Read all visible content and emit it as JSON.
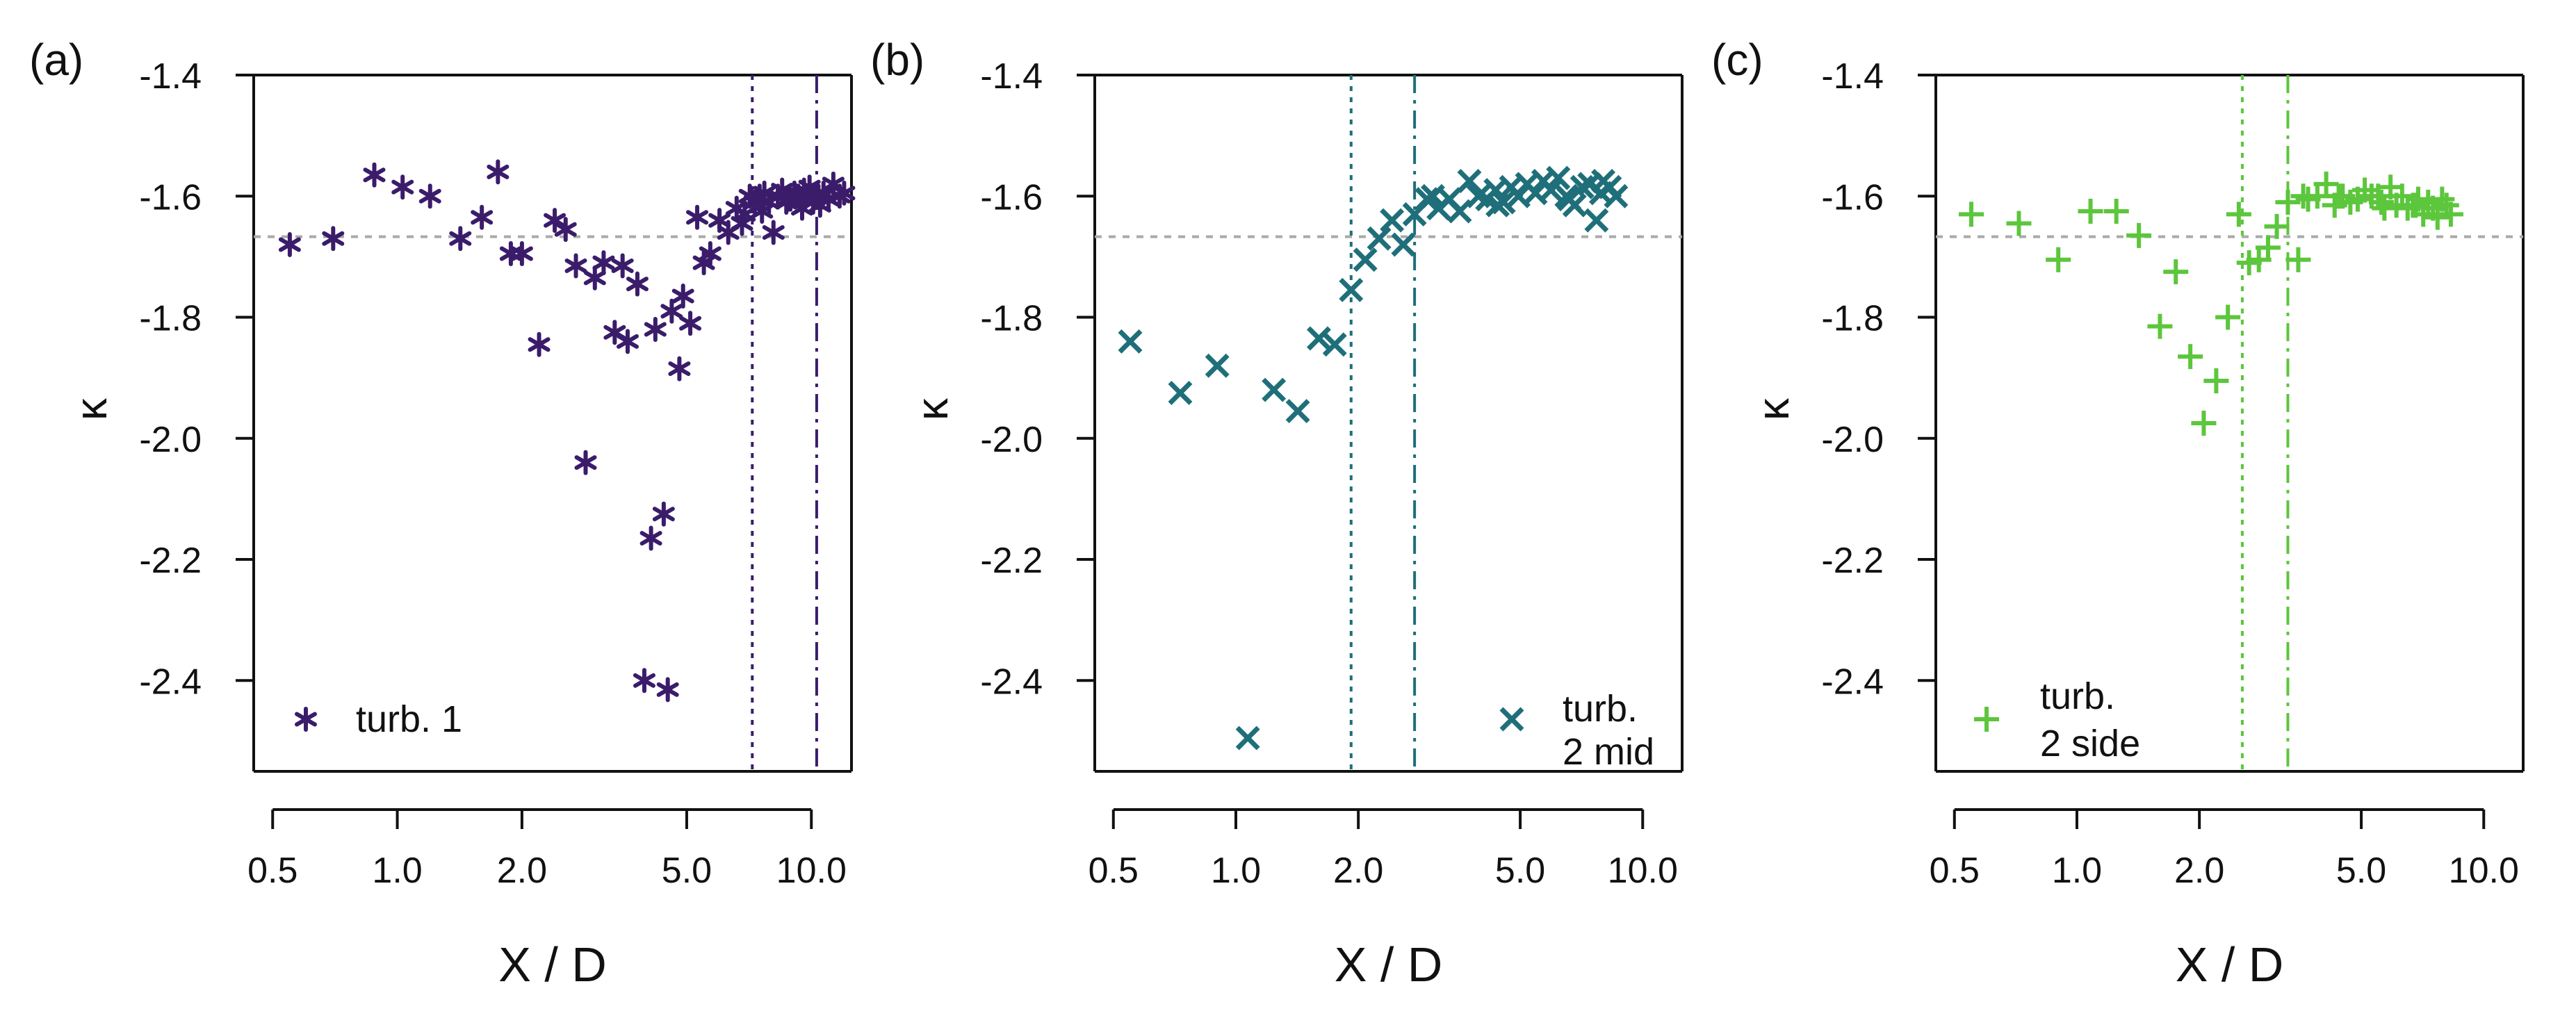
{
  "figure": {
    "panels": [
      "(a)",
      "(b)",
      "(c)"
    ]
  },
  "chart_data": [
    {
      "type": "scatter",
      "panel_label": "(a)",
      "xlabel": "X / D",
      "ylabel": "κ",
      "xscale": "log",
      "xlim": [
        0.45,
        12.5
      ],
      "ylim": [
        -2.55,
        -1.4
      ],
      "xticks": [
        0.5,
        1.0,
        2.0,
        5.0,
        10.0
      ],
      "xtick_labels": [
        "0.5",
        "1.0",
        "2.0",
        "5.0",
        "10.0"
      ],
      "yticks": [
        -1.4,
        -1.6,
        -1.8,
        -2.0,
        -2.2,
        -2.4
      ],
      "ytick_labels": [
        "-1.4",
        "-1.6",
        "-1.8",
        "-2.0",
        "-2.2",
        "-2.4"
      ],
      "hline": -1.667,
      "vlines": [
        {
          "x": 7.2,
          "style": "dotted"
        },
        {
          "x": 10.3,
          "style": "dashdot"
        }
      ],
      "legend": {
        "label": "turb. 1",
        "position": "bottom-left"
      },
      "series": [
        {
          "name": "turb. 1",
          "marker": "asterisk",
          "color": "#3b1c6b",
          "x": [
            0.55,
            0.7,
            0.88,
            1.03,
            1.2,
            1.42,
            1.6,
            1.75,
            1.88,
            2.0,
            2.2,
            2.4,
            2.55,
            2.7,
            2.85,
            3.0,
            3.15,
            3.35,
            3.5,
            3.6,
            3.8,
            3.95,
            4.1,
            4.2,
            4.4,
            4.5,
            4.6,
            4.8,
            4.9,
            5.1,
            5.3,
            5.5,
            5.7,
            6.0,
            6.3,
            6.6,
            6.9,
            7.1,
            7.3,
            7.5,
            7.7,
            7.9,
            8.1,
            8.3,
            8.5,
            8.7,
            8.9,
            9.1,
            9.3,
            9.5,
            9.7,
            9.9,
            10.1,
            10.4,
            10.7,
            11.0,
            11.3,
            11.7,
            12.0,
            6.8,
            7.6,
            8.8,
            9.6,
            10.5
          ],
          "y": [
            -1.68,
            -1.67,
            -1.565,
            -1.585,
            -1.6,
            -1.67,
            -1.635,
            -1.56,
            -1.695,
            -1.695,
            -1.845,
            -1.64,
            -1.655,
            -1.715,
            -2.04,
            -1.735,
            -1.71,
            -1.825,
            -1.715,
            -1.84,
            -1.745,
            -2.4,
            -2.165,
            -1.82,
            -2.125,
            -2.415,
            -1.79,
            -1.885,
            -1.765,
            -1.81,
            -1.635,
            -1.71,
            -1.695,
            -1.64,
            -1.66,
            -1.62,
            -1.63,
            -1.6,
            -1.61,
            -1.6,
            -1.595,
            -1.61,
            -1.66,
            -1.6,
            -1.59,
            -1.61,
            -1.605,
            -1.595,
            -1.6,
            -1.62,
            -1.6,
            -1.585,
            -1.61,
            -1.6,
            -1.595,
            -1.605,
            -1.58,
            -1.6,
            -1.595,
            -1.645,
            -1.625,
            -1.605,
            -1.59,
            -1.615
          ]
        }
      ]
    },
    {
      "type": "scatter",
      "panel_label": "(b)",
      "xlabel": "X / D",
      "ylabel": "κ",
      "xscale": "log",
      "xlim": [
        0.45,
        12.5
      ],
      "ylim": [
        -2.55,
        -1.4
      ],
      "xticks": [
        0.5,
        1.0,
        2.0,
        5.0,
        10.0
      ],
      "xtick_labels": [
        "0.5",
        "1.0",
        "2.0",
        "5.0",
        "10.0"
      ],
      "yticks": [
        -1.4,
        -1.6,
        -1.8,
        -2.0,
        -2.2,
        -2.4
      ],
      "ytick_labels": [
        "-1.4",
        "-1.6",
        "-1.8",
        "-2.0",
        "-2.2",
        "-2.4"
      ],
      "hline": -1.667,
      "vlines": [
        {
          "x": 1.92,
          "style": "dotted"
        },
        {
          "x": 2.75,
          "style": "dashdot"
        }
      ],
      "legend": {
        "label_line1": "turb.",
        "label_line2": "2 mid",
        "position": "bottom-right"
      },
      "series": [
        {
          "name": "turb. 2 mid",
          "marker": "x",
          "color": "#1f6f7a",
          "x": [
            0.55,
            0.73,
            0.9,
            1.07,
            1.24,
            1.42,
            1.6,
            1.75,
            1.92,
            2.08,
            2.25,
            2.42,
            2.58,
            2.75,
            2.95,
            3.15,
            3.35,
            3.55,
            3.75,
            3.95,
            4.15,
            4.35,
            4.55,
            4.75,
            4.95,
            5.2,
            5.45,
            5.7,
            5.95,
            6.2,
            6.5,
            6.8,
            7.1,
            7.4,
            7.7,
            8.0,
            8.3,
            8.6,
            3.05,
            4.4,
            6.6,
            7.9
          ],
          "y": [
            -1.84,
            -1.925,
            -1.88,
            -2.495,
            -1.92,
            -1.955,
            -1.835,
            -1.845,
            -1.755,
            -1.705,
            -1.67,
            -1.64,
            -1.68,
            -1.63,
            -1.605,
            -1.62,
            -1.605,
            -1.625,
            -1.575,
            -1.6,
            -1.605,
            -1.59,
            -1.61,
            -1.585,
            -1.6,
            -1.58,
            -1.595,
            -1.575,
            -1.59,
            -1.57,
            -1.6,
            -1.615,
            -1.585,
            -1.58,
            -1.64,
            -1.575,
            -1.585,
            -1.6,
            -1.6,
            -1.615,
            -1.605,
            -1.595
          ]
        }
      ]
    },
    {
      "type": "scatter",
      "panel_label": "(c)",
      "xlabel": "X / D",
      "ylabel": "κ",
      "xscale": "log",
      "xlim": [
        0.45,
        12.5
      ],
      "ylim": [
        -2.55,
        -1.4
      ],
      "xticks": [
        0.5,
        1.0,
        2.0,
        5.0,
        10.0
      ],
      "xtick_labels": [
        "0.5",
        "1.0",
        "2.0",
        "5.0",
        "10.0"
      ],
      "yticks": [
        -1.4,
        -1.6,
        -1.8,
        -2.0,
        -2.2,
        -2.4
      ],
      "ytick_labels": [
        "-1.4",
        "-1.6",
        "-1.8",
        "-2.0",
        "-2.2",
        "-2.4"
      ],
      "hline": -1.667,
      "vlines": [
        {
          "x": 2.55,
          "style": "dotted"
        },
        {
          "x": 3.3,
          "style": "dashdot"
        }
      ],
      "legend": {
        "label_line1": "turb.",
        "label_line2": "2 side",
        "position": "bottom-left"
      },
      "series": [
        {
          "name": "turb. 2 side",
          "marker": "plus",
          "color": "#5cc63c",
          "x": [
            0.55,
            0.72,
            0.9,
            1.08,
            1.25,
            1.42,
            1.6,
            1.75,
            1.9,
            2.05,
            2.2,
            2.35,
            2.5,
            2.65,
            2.8,
            2.95,
            3.1,
            3.3,
            3.5,
            3.7,
            3.9,
            4.1,
            4.3,
            4.5,
            4.7,
            4.9,
            5.1,
            5.3,
            5.5,
            5.7,
            5.9,
            6.1,
            6.3,
            6.5,
            6.7,
            6.9,
            7.1,
            7.3,
            7.5,
            7.7,
            7.9,
            8.1,
            8.3,
            3.6,
            4.4,
            5.6,
            6.8
          ],
          "y": [
            -1.63,
            -1.645,
            -1.705,
            -1.625,
            -1.625,
            -1.665,
            -1.815,
            -1.725,
            -1.865,
            -1.975,
            -1.905,
            -1.8,
            -1.63,
            -1.71,
            -1.705,
            -1.685,
            -1.65,
            -1.61,
            -1.705,
            -1.605,
            -1.6,
            -1.58,
            -1.615,
            -1.6,
            -1.61,
            -1.605,
            -1.59,
            -1.6,
            -1.6,
            -1.62,
            -1.585,
            -1.615,
            -1.6,
            -1.62,
            -1.615,
            -1.605,
            -1.63,
            -1.61,
            -1.62,
            -1.635,
            -1.605,
            -1.615,
            -1.63,
            -1.6,
            -1.6,
            -1.61,
            -1.615
          ]
        }
      ]
    }
  ]
}
